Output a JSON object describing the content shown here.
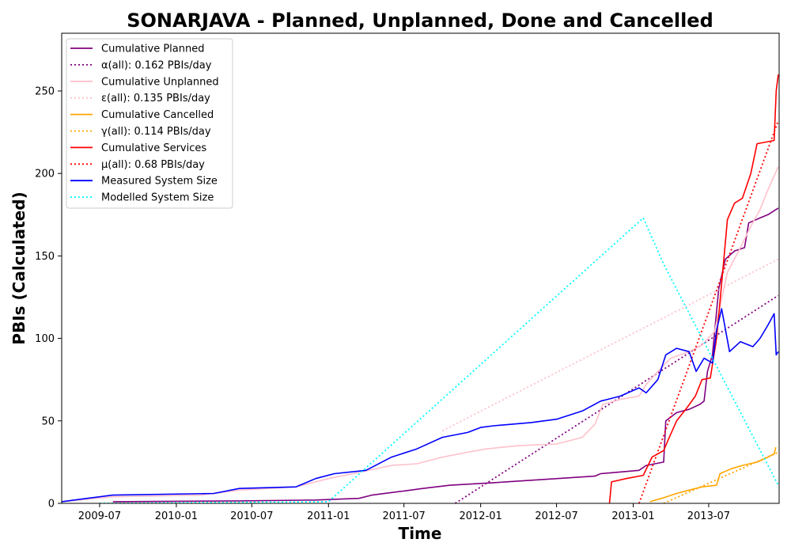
{
  "chart_data": {
    "type": "line",
    "title": "SONARJAVA - Planned, Unplanned, Done  and Cancelled",
    "xlabel": "Time",
    "ylabel": "PBIs (Calculated)",
    "xlim": [
      "2009-04-01",
      "2013-12-17"
    ],
    "ylim": [
      0,
      285
    ],
    "x_ticks": [
      "2009-07",
      "2010-01",
      "2010-07",
      "2011-01",
      "2011-07",
      "2012-01",
      "2012-07",
      "2013-01",
      "2013-07"
    ],
    "y_ticks": [
      0,
      50,
      100,
      150,
      200,
      250
    ],
    "legend_position": "upper-left",
    "series": [
      {
        "name": "Cumulative Planned",
        "color": "#800080",
        "style": "solid",
        "points": [
          [
            "2009-08-02",
            1
          ],
          [
            "2010-06-01",
            1.5
          ],
          [
            "2010-12-01",
            2
          ],
          [
            "2011-03-15",
            3
          ],
          [
            "2011-04-15",
            5
          ],
          [
            "2011-07-01",
            7.5
          ],
          [
            "2011-08-15",
            9
          ],
          [
            "2011-10-20",
            11
          ],
          [
            "2012-02-01",
            12.5
          ],
          [
            "2012-08-01",
            15.5
          ],
          [
            "2012-10-01",
            16.5
          ],
          [
            "2012-10-15",
            18
          ],
          [
            "2013-01-15",
            20
          ],
          [
            "2013-02-01",
            23
          ],
          [
            "2013-03-15",
            25
          ],
          [
            "2013-03-20",
            50
          ],
          [
            "2013-04-15",
            55
          ],
          [
            "2013-05-15",
            57
          ],
          [
            "2013-06-10",
            60
          ],
          [
            "2013-06-20",
            62
          ],
          [
            "2013-06-28",
            80
          ],
          [
            "2013-07-10",
            90
          ],
          [
            "2013-07-25",
            130
          ],
          [
            "2013-08-10",
            148
          ],
          [
            "2013-09-01",
            153
          ],
          [
            "2013-09-25",
            155
          ],
          [
            "2013-10-05",
            170
          ],
          [
            "2013-11-01",
            173
          ],
          [
            "2013-11-20",
            175
          ],
          [
            "2013-12-15",
            179
          ]
        ]
      },
      {
        "name": "α(all): 0.162 PBIs/day",
        "color": "#800080",
        "style": "dotted",
        "points": [
          [
            "2011-11-01",
            0
          ],
          [
            "2013-12-15",
            126
          ]
        ]
      },
      {
        "name": "Cumulative Unplanned",
        "color": "#FFC0CB",
        "style": "solid",
        "points": [
          [
            "2009-04-01",
            1
          ],
          [
            "2009-08-01",
            4
          ],
          [
            "2010-03-01",
            5
          ],
          [
            "2010-06-01",
            8
          ],
          [
            "2010-10-15",
            10
          ],
          [
            "2011-01-01",
            15
          ],
          [
            "2011-03-01",
            18
          ],
          [
            "2011-06-01",
            23
          ],
          [
            "2011-08-01",
            24
          ],
          [
            "2011-10-01",
            28
          ],
          [
            "2011-12-01",
            31
          ],
          [
            "2012-01-15",
            33
          ],
          [
            "2012-04-01",
            35
          ],
          [
            "2012-07-01",
            36
          ],
          [
            "2012-09-01",
            40
          ],
          [
            "2012-10-01",
            48
          ],
          [
            "2012-10-20",
            60
          ],
          [
            "2012-12-01",
            63
          ],
          [
            "2013-01-15",
            65
          ],
          [
            "2013-02-01",
            72
          ],
          [
            "2013-03-01",
            80
          ],
          [
            "2013-04-01",
            88
          ],
          [
            "2013-05-15",
            92
          ],
          [
            "2013-06-15",
            96
          ],
          [
            "2013-07-15",
            104
          ],
          [
            "2013-08-15",
            140
          ],
          [
            "2013-09-15",
            155
          ],
          [
            "2013-10-10",
            168
          ],
          [
            "2013-11-01",
            178
          ],
          [
            "2013-11-20",
            190
          ],
          [
            "2013-12-15",
            204
          ]
        ]
      },
      {
        "name": "ε(all): 0.135 PBIs/day",
        "color": "#FFC0CB",
        "style": "dotted",
        "points": [
          [
            "2011-10-01",
            44
          ],
          [
            "2013-12-15",
            148
          ]
        ]
      },
      {
        "name": "Cumulative Cancelled",
        "color": "#FFA500",
        "style": "solid",
        "points": [
          [
            "2013-02-10",
            1
          ],
          [
            "2013-03-10",
            3
          ],
          [
            "2013-04-15",
            6
          ],
          [
            "2013-05-15",
            8
          ],
          [
            "2013-06-15",
            10
          ],
          [
            "2013-07-20",
            11
          ],
          [
            "2013-07-28",
            18
          ],
          [
            "2013-08-25",
            21
          ],
          [
            "2013-09-20",
            23
          ],
          [
            "2013-10-25",
            25
          ],
          [
            "2013-11-20",
            28
          ],
          [
            "2013-12-05",
            30
          ],
          [
            "2013-12-09",
            34
          ]
        ]
      },
      {
        "name": "γ(all): 0.114 PBIs/day",
        "color": "#FFA500",
        "style": "dotted",
        "points": [
          [
            "2013-03-15",
            0
          ],
          [
            "2013-12-15",
            31
          ]
        ]
      },
      {
        "name": "Cumulative Services",
        "color": "#FF0000",
        "style": "solid",
        "points": [
          [
            "2012-11-05",
            0
          ],
          [
            "2012-11-10",
            13
          ],
          [
            "2012-12-15",
            15
          ],
          [
            "2013-01-25",
            17
          ],
          [
            "2013-02-15",
            28
          ],
          [
            "2013-03-15",
            32
          ],
          [
            "2013-03-25",
            38
          ],
          [
            "2013-04-15",
            50
          ],
          [
            "2013-05-10",
            58
          ],
          [
            "2013-05-30",
            65
          ],
          [
            "2013-06-15",
            75
          ],
          [
            "2013-07-05",
            76
          ],
          [
            "2013-07-20",
            100
          ],
          [
            "2013-07-31",
            130
          ],
          [
            "2013-08-15",
            172
          ],
          [
            "2013-09-01",
            182
          ],
          [
            "2013-09-20",
            185
          ],
          [
            "2013-10-10",
            200
          ],
          [
            "2013-10-25",
            218
          ],
          [
            "2013-12-05",
            220
          ],
          [
            "2013-12-10",
            250
          ],
          [
            "2013-12-15",
            260
          ]
        ]
      },
      {
        "name": "μ(all): 0.68 PBIs/day",
        "color": "#FF0000",
        "style": "dotted",
        "points": [
          [
            "2013-01-15",
            0
          ],
          [
            "2013-12-15",
            232
          ]
        ]
      },
      {
        "name": "Measured System Size",
        "color": "#0000FF",
        "style": "solid",
        "points": [
          [
            "2009-04-01",
            1
          ],
          [
            "2009-06-01",
            3
          ],
          [
            "2009-08-01",
            5
          ],
          [
            "2010-04-01",
            6
          ],
          [
            "2010-06-01",
            9
          ],
          [
            "2010-10-15",
            10
          ],
          [
            "2010-12-01",
            15
          ],
          [
            "2011-01-15",
            18
          ],
          [
            "2011-04-01",
            20
          ],
          [
            "2011-06-01",
            28
          ],
          [
            "2011-08-01",
            33
          ],
          [
            "2011-10-01",
            40
          ],
          [
            "2011-12-01",
            43
          ],
          [
            "2012-01-01",
            46
          ],
          [
            "2012-02-01",
            47
          ],
          [
            "2012-05-01",
            49
          ],
          [
            "2012-07-01",
            51
          ],
          [
            "2012-09-01",
            56
          ],
          [
            "2012-10-15",
            62
          ],
          [
            "2012-12-01",
            65
          ],
          [
            "2013-01-15",
            70
          ],
          [
            "2013-02-01",
            67
          ],
          [
            "2013-03-01",
            75
          ],
          [
            "2013-03-20",
            90
          ],
          [
            "2013-04-15",
            94
          ],
          [
            "2013-05-15",
            92
          ],
          [
            "2013-06-01",
            80
          ],
          [
            "2013-06-20",
            88
          ],
          [
            "2013-07-10",
            85
          ],
          [
            "2013-07-20",
            105
          ],
          [
            "2013-08-01",
            118
          ],
          [
            "2013-08-20",
            92
          ],
          [
            "2013-09-15",
            98
          ],
          [
            "2013-10-15",
            95
          ],
          [
            "2013-11-01",
            100
          ],
          [
            "2013-11-20",
            108
          ],
          [
            "2013-12-05",
            115
          ],
          [
            "2013-12-10",
            90
          ],
          [
            "2013-12-15",
            92
          ]
        ]
      },
      {
        "name": "Modelled System Size",
        "color": "#00FFFF",
        "style": "dotted",
        "points": [
          [
            "2009-07-01",
            0
          ],
          [
            "2011-01-01",
            1
          ],
          [
            "2013-01-25",
            173
          ],
          [
            "2013-03-15",
            145
          ],
          [
            "2013-12-15",
            11
          ]
        ]
      }
    ]
  }
}
